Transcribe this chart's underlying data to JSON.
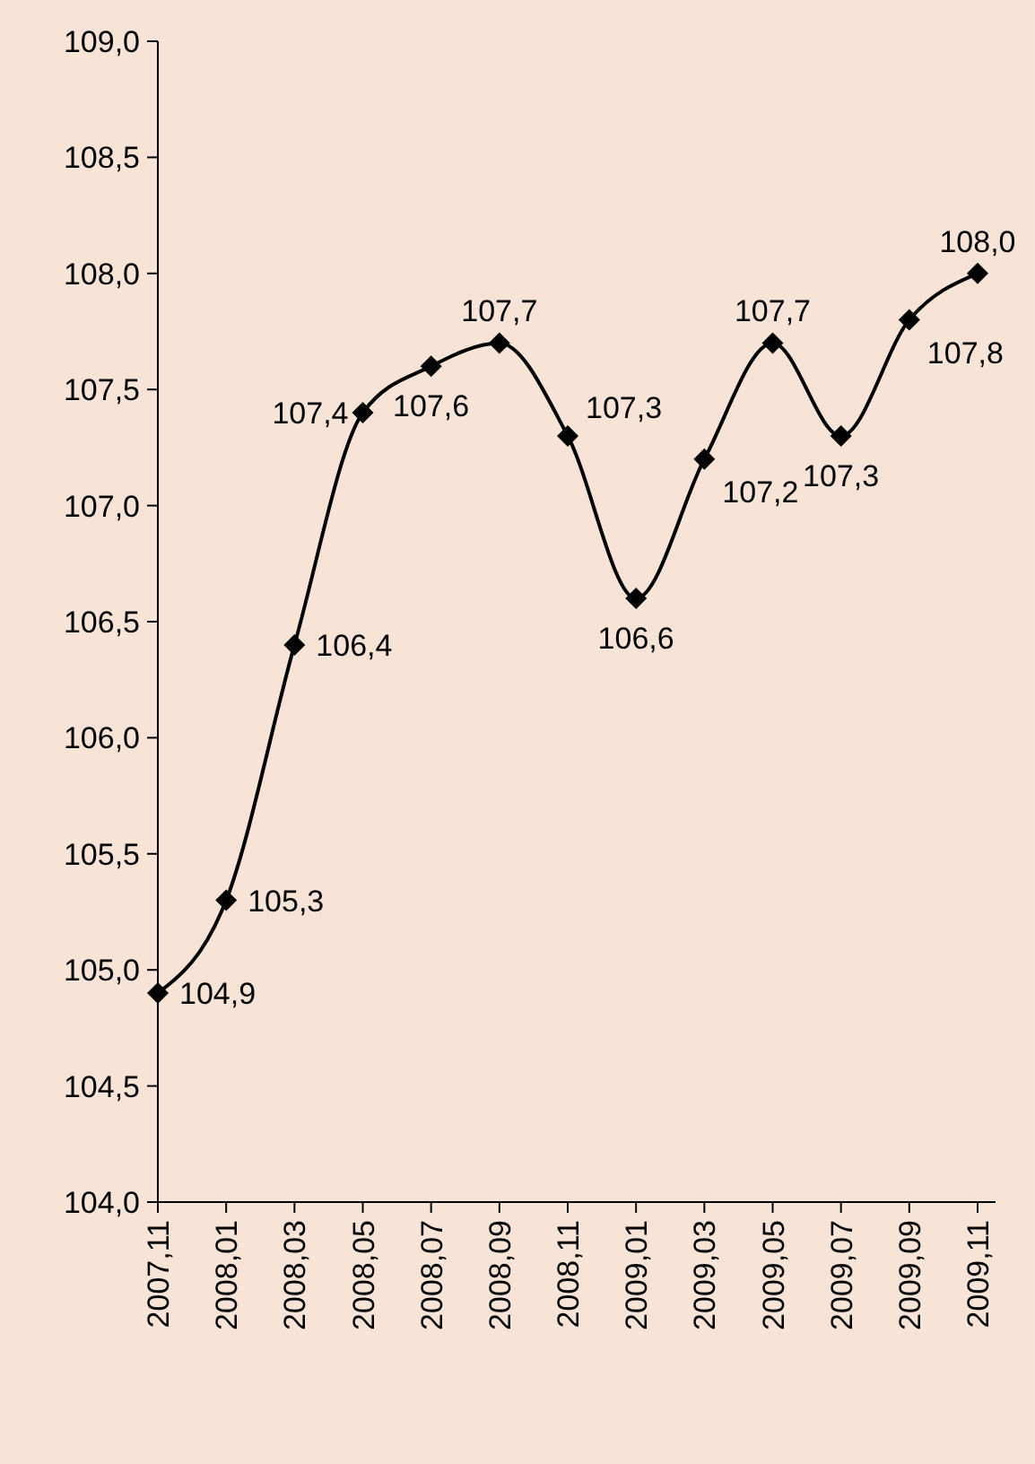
{
  "chart_data": {
    "type": "line",
    "categories": [
      "2007,11",
      "2008,01",
      "2008,03",
      "2008,05",
      "2008,07",
      "2008,09",
      "2008,11",
      "2009,01",
      "2009,03",
      "2009,05",
      "2009,07",
      "2009,09",
      "2009,11"
    ],
    "series": [
      {
        "color": "#000000",
        "values": [
          104.9,
          105.3,
          106.4,
          107.4,
          107.6,
          107.7,
          107.3,
          106.6,
          107.2,
          107.7,
          107.3,
          107.8,
          108.0
        ],
        "value_labels": [
          "104,9",
          "105,3",
          "106,4",
          "107,4",
          "107,6",
          "107,7",
          "107,3",
          "106,6",
          "107,2",
          "107,7",
          "107,3",
          "107,8",
          "108,0"
        ]
      }
    ],
    "ylim": [
      104,
      109
    ],
    "yticks": [
      {
        "value": 104,
        "label": "104,0"
      },
      {
        "value": 104.5,
        "label": "104,5"
      },
      {
        "value": 105,
        "label": "105,0"
      },
      {
        "value": 105.5,
        "label": "105,5"
      },
      {
        "value": 106,
        "label": "106,0"
      },
      {
        "value": 106.5,
        "label": "106,5"
      },
      {
        "value": 107,
        "label": "107,0"
      },
      {
        "value": 107.5,
        "label": "107,5"
      },
      {
        "value": 108,
        "label": "108,0"
      },
      {
        "value": 108.5,
        "label": "108,5"
      },
      {
        "value": 109,
        "label": "109,0"
      }
    ],
    "marker": "diamond",
    "line_style": "solid"
  }
}
